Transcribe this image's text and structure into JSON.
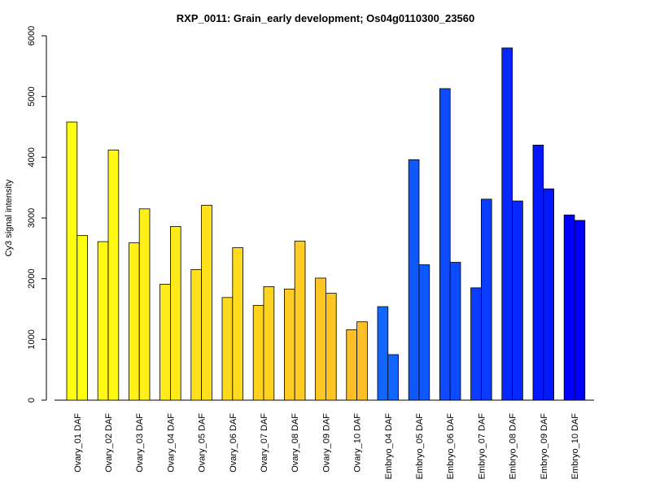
{
  "chart_data": {
    "type": "bar",
    "title": "RXP_0011: Grain_early development; Os04g0110300_23560",
    "ylabel": "Cy3 signal intensity",
    "xlabel": "",
    "ylim": [
      0,
      6000
    ],
    "yticks": [
      0,
      1000,
      2000,
      3000,
      4000,
      5000,
      6000
    ],
    "grid": false,
    "legend": "none",
    "categories": [
      "Ovary_01 DAF",
      "Ovary_02 DAF",
      "Ovary_03 DAF",
      "Ovary_04 DAF",
      "Ovary_05 DAF",
      "Ovary_06 DAF",
      "Ovary_07 DAF",
      "Ovary_08 DAF",
      "Ovary_09 DAF",
      "Ovary_10 DAF",
      "Embryo_04 DAF",
      "Embryo_05 DAF",
      "Embryo_06 DAF",
      "Embryo_07 DAF",
      "Embryo_08 DAF",
      "Embryo_09 DAF",
      "Embryo_10 DAF"
    ],
    "series": [
      {
        "values": [
          4580,
          2610,
          2590,
          1910,
          2150,
          1690,
          1560,
          1830,
          2010,
          1160,
          1540,
          3960,
          5130,
          1850,
          5800,
          4200,
          3050
        ]
      },
      {
        "values": [
          2710,
          4120,
          3150,
          2860,
          3210,
          2510,
          1870,
          2620,
          1760,
          1290,
          750,
          2230,
          2270,
          3310,
          3280,
          3480,
          2960
        ]
      }
    ],
    "bar_colors": [
      "#FFFF10",
      "#FFF714",
      "#FFF017",
      "#FEE91A",
      "#FEE11C",
      "#FEDA1E",
      "#FED31F",
      "#FECC22",
      "#FEC624",
      "#FEBE25",
      "#1066FF",
      "#0E58FF",
      "#0C4BFF",
      "#0A3DFF",
      "#0628FF",
      "#0418FF",
      "#0000FF"
    ]
  }
}
